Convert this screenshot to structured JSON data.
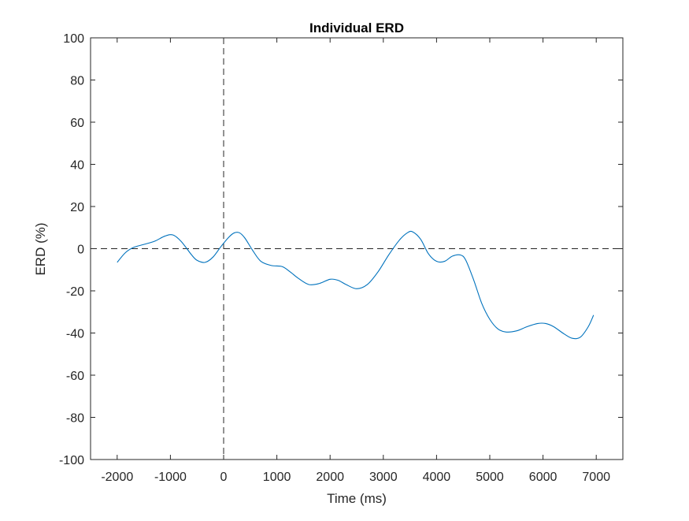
{
  "chart_data": {
    "type": "line",
    "title": "Individual ERD",
    "xlabel": "Time (ms)",
    "ylabel": "ERD (%)",
    "xlim": [
      -2500,
      7500
    ],
    "ylim": [
      -100,
      100
    ],
    "xticks": [
      -2000,
      -1000,
      0,
      1000,
      2000,
      3000,
      4000,
      5000,
      6000,
      7000
    ],
    "xtick_labels": [
      "-2000",
      "-1000",
      "0",
      "1000",
      "2000",
      "3000",
      "4000",
      "5000",
      "6000",
      "7000"
    ],
    "yticks": [
      -100,
      -80,
      -60,
      -40,
      -20,
      0,
      20,
      40,
      60,
      80,
      100
    ],
    "ytick_labels": [
      "-100",
      "-80",
      "-60",
      "-40",
      "-20",
      "0",
      "20",
      "40",
      "60",
      "80",
      "100"
    ],
    "grid": false,
    "reference_lines": [
      {
        "orientation": "vertical",
        "value": 0,
        "style": "dashed",
        "color": "#262626"
      },
      {
        "orientation": "horizontal",
        "value": 0,
        "style": "dashed",
        "color": "#262626"
      }
    ],
    "series": [
      {
        "color": "#0072bd",
        "x": [
          -2000,
          -1850,
          -1700,
          -1500,
          -1300,
          -1100,
          -950,
          -800,
          -600,
          -500,
          -350,
          -200,
          -50,
          100,
          200,
          300,
          400,
          550,
          700,
          900,
          1100,
          1250,
          1400,
          1600,
          1800,
          2000,
          2150,
          2300,
          2500,
          2700,
          2900,
          3100,
          3300,
          3450,
          3550,
          3700,
          3850,
          4000,
          4150,
          4300,
          4450,
          4550,
          4700,
          4850,
          5000,
          5150,
          5300,
          5500,
          5700,
          5900,
          6050,
          6200,
          6400,
          6550,
          6700,
          6850,
          6950
        ],
        "y": [
          -6.5,
          -2,
          0.5,
          2,
          3.5,
          6,
          6.5,
          3.5,
          -3,
          -5.5,
          -6.5,
          -4,
          1,
          5.5,
          7.5,
          7.5,
          5,
          -1,
          -6,
          -8,
          -8.5,
          -11,
          -14,
          -17,
          -16.5,
          -14.5,
          -15,
          -17,
          -19,
          -17,
          -11,
          -3,
          4,
          7.5,
          8,
          4.5,
          -2.5,
          -6,
          -6,
          -3.5,
          -3,
          -5.5,
          -15,
          -26,
          -33.5,
          -38,
          -39.5,
          -39,
          -37,
          -35.5,
          -35.5,
          -37,
          -40.5,
          -42.5,
          -42,
          -37,
          -31.5
        ]
      }
    ]
  }
}
